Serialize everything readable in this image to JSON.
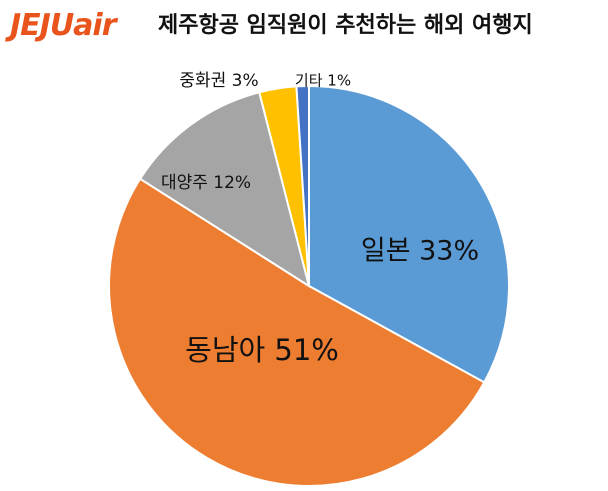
{
  "header": {
    "logo_text": "JEJUair",
    "logo_color": "#e8541c",
    "title": "제주항공 임직원이 추천하는 해외 여행지"
  },
  "chart_data": {
    "type": "pie",
    "title": "제주항공 임직원이 추천하는 해외 여행지",
    "start": "12 o'clock, clockwise",
    "slices": [
      {
        "label": "일본 33%",
        "name": "일본",
        "value": 33,
        "color": "#5b9bd5"
      },
      {
        "label": "동남아 51%",
        "name": "동남아",
        "value": 51,
        "color": "#ed7d31"
      },
      {
        "label": "대양주 12%",
        "name": "대양주",
        "value": 12,
        "color": "#a5a5a5"
      },
      {
        "label": "중화권 3%",
        "name": "중화권",
        "value": 3,
        "color": "#ffc000"
      },
      {
        "label": "기타 1%",
        "name": "기타",
        "value": 1,
        "color": "#4472c4"
      }
    ]
  }
}
